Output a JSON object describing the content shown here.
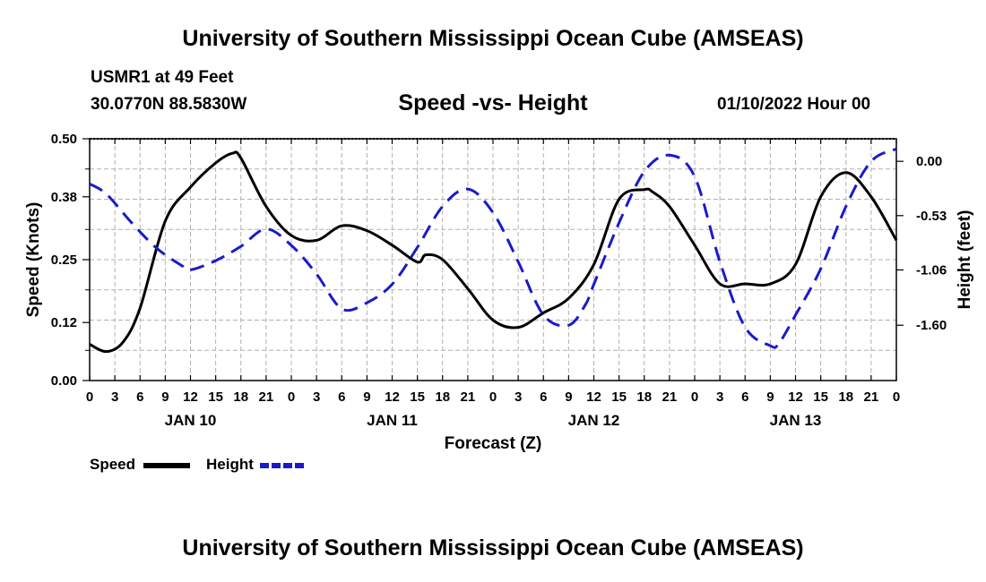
{
  "header": {
    "title": "University of Southern Mississippi Ocean Cube (AMSEAS)",
    "station": "USMR1 at 49 Feet",
    "coords": "30.0770N  88.5830W",
    "chart_title": "Speed -vs- Height",
    "datetime": "01/10/2022 Hour 00",
    "footer_title": "University of Southern Mississippi Ocean Cube (AMSEAS)"
  },
  "colors": {
    "speed": "#000000",
    "height": "#1a1acc",
    "grid": "#b0b0b0"
  },
  "chart_data": {
    "type": "line",
    "title": "Speed -vs- Height",
    "xlabel": "Forecast (Z)",
    "ylabel_left": "Speed (Knots)",
    "ylabel_right": "Height (feet)",
    "x_range_hours": [
      0,
      96
    ],
    "y_left_range": [
      0,
      0.5
    ],
    "y_right_range": [
      -2.14,
      0.22
    ],
    "x_tick_labels": [
      "0",
      "3",
      "6",
      "9",
      "12",
      "15",
      "18",
      "21",
      "0",
      "3",
      "6",
      "9",
      "12",
      "15",
      "18",
      "21",
      "0",
      "3",
      "6",
      "9",
      "12",
      "15",
      "18",
      "21",
      "0",
      "3",
      "6",
      "9",
      "12",
      "15",
      "18",
      "21",
      "0"
    ],
    "day_labels": [
      {
        "label": "JAN 10",
        "hour": 12
      },
      {
        "label": "JAN 11",
        "hour": 36
      },
      {
        "label": "JAN 12",
        "hour": 60
      },
      {
        "label": "JAN 13",
        "hour": 84
      }
    ],
    "y_left_ticks": [
      0.0,
      0.12,
      0.25,
      0.38,
      0.5
    ],
    "y_left_tick_labels": [
      "0.00",
      "0.12",
      "0.25",
      "0.38",
      "0.50"
    ],
    "y_right_ticks": [
      0.0,
      -0.53,
      -1.06,
      -1.6
    ],
    "y_right_tick_labels": [
      "0.00",
      "-0.53",
      "-1.06",
      "-1.60"
    ],
    "grid": true,
    "series": [
      {
        "name": "Speed",
        "axis": "left",
        "style": "solid",
        "x": [
          0,
          2,
          4,
          6,
          9,
          12,
          15,
          17,
          18,
          21,
          24,
          27,
          30,
          33,
          36,
          39,
          40,
          42,
          45,
          48,
          51,
          54,
          57,
          60,
          63,
          66,
          67,
          69,
          72,
          75,
          78,
          81,
          84,
          87,
          90,
          93,
          96
        ],
        "y": [
          0.075,
          0.06,
          0.08,
          0.15,
          0.33,
          0.4,
          0.45,
          0.47,
          0.46,
          0.36,
          0.3,
          0.29,
          0.32,
          0.31,
          0.28,
          0.245,
          0.26,
          0.25,
          0.19,
          0.125,
          0.11,
          0.14,
          0.17,
          0.24,
          0.375,
          0.395,
          0.39,
          0.36,
          0.28,
          0.2,
          0.2,
          0.2,
          0.24,
          0.38,
          0.43,
          0.38,
          0.29
        ]
      },
      {
        "name": "Height",
        "axis": "right",
        "style": "dashed",
        "x": [
          0,
          2,
          5,
          8,
          11,
          12,
          15,
          18,
          21,
          24,
          27,
          30,
          33,
          36,
          39,
          42,
          45,
          48,
          51,
          54,
          57,
          59,
          60,
          63,
          66,
          69,
          72,
          75,
          78,
          81,
          82,
          84,
          87,
          90,
          93,
          96
        ],
        "y": [
          -0.22,
          -0.32,
          -0.6,
          -0.85,
          -1.02,
          -1.06,
          -0.97,
          -0.83,
          -0.66,
          -0.82,
          -1.1,
          -1.44,
          -1.38,
          -1.2,
          -0.84,
          -0.44,
          -0.27,
          -0.5,
          -0.98,
          -1.5,
          -1.6,
          -1.4,
          -1.2,
          -0.6,
          -0.1,
          0.06,
          -0.15,
          -0.98,
          -1.62,
          -1.8,
          -1.78,
          -1.5,
          -1.05,
          -0.44,
          0.0,
          0.12
        ]
      }
    ],
    "legend": [
      {
        "label": "Speed",
        "style": "solid"
      },
      {
        "label": "Height",
        "style": "dashed"
      }
    ],
    "legend_position": "bottom-left"
  }
}
